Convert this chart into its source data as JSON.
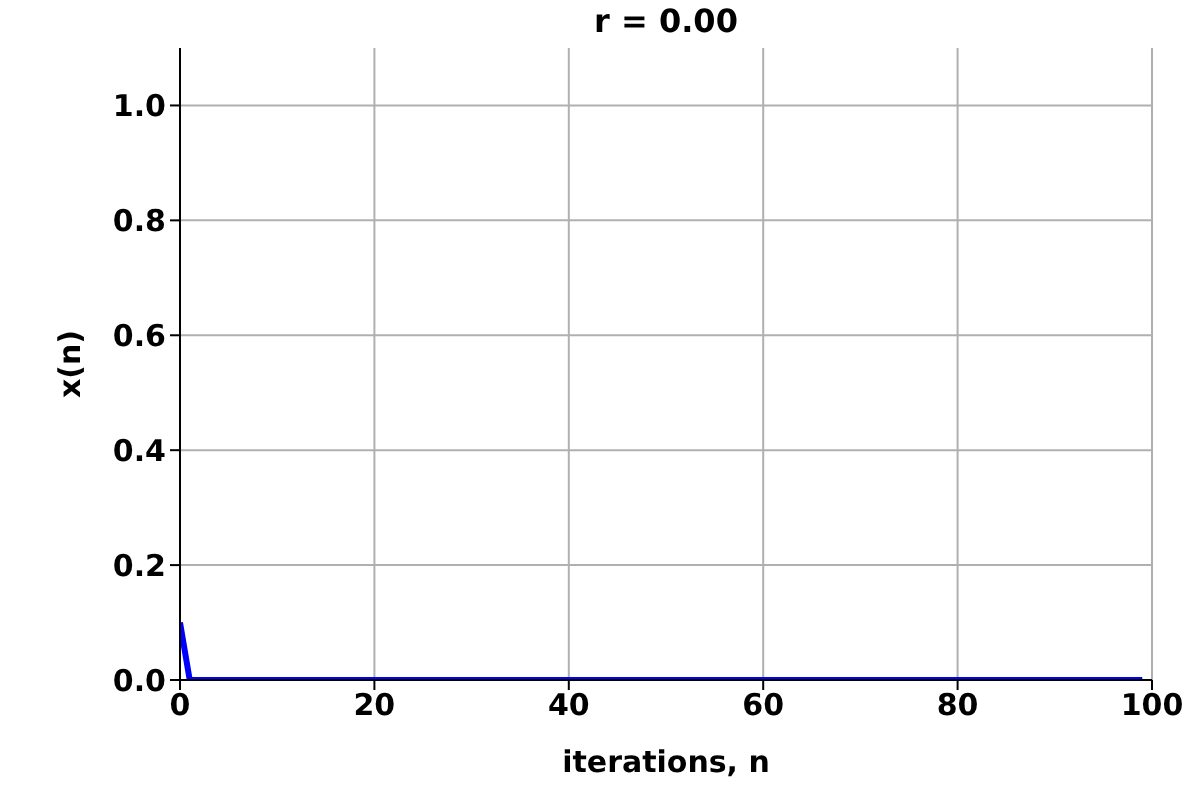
{
  "chart_data": {
    "type": "line",
    "title": "r = 0.00",
    "xlabel": "iterations, n",
    "ylabel": "x(n)",
    "x": [
      0,
      1,
      2,
      3,
      4,
      5,
      6,
      7,
      8,
      9,
      10,
      11,
      12,
      13,
      14,
      15,
      16,
      17,
      18,
      19,
      20,
      21,
      22,
      23,
      24,
      25,
      26,
      27,
      28,
      29,
      30,
      31,
      32,
      33,
      34,
      35,
      36,
      37,
      38,
      39,
      40,
      41,
      42,
      43,
      44,
      45,
      46,
      47,
      48,
      49,
      50,
      51,
      52,
      53,
      54,
      55,
      56,
      57,
      58,
      59,
      60,
      61,
      62,
      63,
      64,
      65,
      66,
      67,
      68,
      69,
      70,
      71,
      72,
      73,
      74,
      75,
      76,
      77,
      78,
      79,
      80,
      81,
      82,
      83,
      84,
      85,
      86,
      87,
      88,
      89,
      90,
      91,
      92,
      93,
      94,
      95,
      96,
      97,
      98,
      99
    ],
    "series": [
      {
        "color": "#0000ff",
        "values": [
          0.1,
          0,
          0,
          0,
          0,
          0,
          0,
          0,
          0,
          0,
          0,
          0,
          0,
          0,
          0,
          0,
          0,
          0,
          0,
          0,
          0,
          0,
          0,
          0,
          0,
          0,
          0,
          0,
          0,
          0,
          0,
          0,
          0,
          0,
          0,
          0,
          0,
          0,
          0,
          0,
          0,
          0,
          0,
          0,
          0,
          0,
          0,
          0,
          0,
          0,
          0,
          0,
          0,
          0,
          0,
          0,
          0,
          0,
          0,
          0,
          0,
          0,
          0,
          0,
          0,
          0,
          0,
          0,
          0,
          0,
          0,
          0,
          0,
          0,
          0,
          0,
          0,
          0,
          0,
          0,
          0,
          0,
          0,
          0,
          0,
          0,
          0,
          0,
          0,
          0,
          0,
          0,
          0,
          0,
          0,
          0,
          0,
          0,
          0,
          0
        ]
      }
    ],
    "xlim": [
      0,
      100
    ],
    "xticks": [
      0,
      20,
      40,
      60,
      80,
      100
    ],
    "ylim": [
      0,
      1.1
    ],
    "yticks": [
      {
        "value": 0,
        "label": "0.0"
      },
      {
        "value": 0.2,
        "label": "0.2"
      },
      {
        "value": 0.4,
        "label": "0.4"
      },
      {
        "value": 0.6,
        "label": "0.6"
      },
      {
        "value": 0.8,
        "label": "0.8"
      },
      {
        "value": 1.0,
        "label": "1.0"
      }
    ],
    "grid": true
  }
}
